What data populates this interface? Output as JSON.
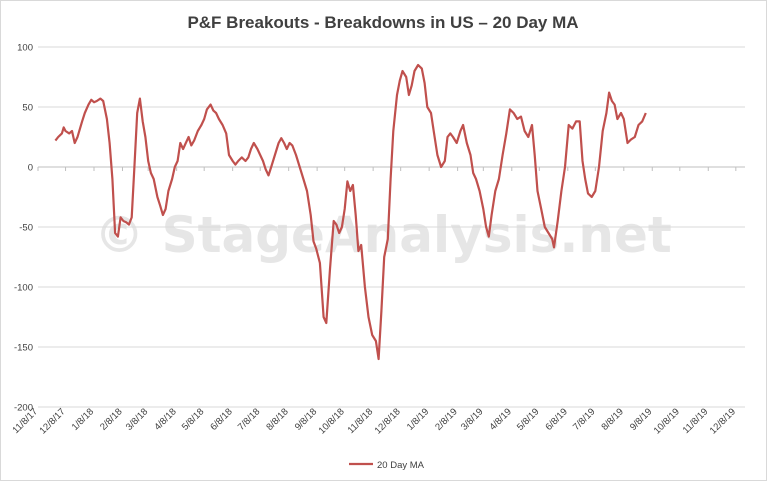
{
  "chart_data": {
    "type": "line",
    "title": "P&F Breakouts - Breakdowns in US – 20 Day MA",
    "watermark": "© StageAnalysis.net",
    "xlabel": "",
    "ylabel": "",
    "ylim": [
      -200,
      100
    ],
    "yticks": [
      100,
      50,
      0,
      -50,
      -100,
      -150,
      -200
    ],
    "xlim": [
      "2017-11-08",
      "2019-12-18"
    ],
    "xtick_labels": [
      {
        "date": "2017-11-08",
        "label": "11/8/17"
      },
      {
        "date": "2017-12-08",
        "label": "12/8/17"
      },
      {
        "date": "2018-01-08",
        "label": "1/8/18"
      },
      {
        "date": "2018-02-08",
        "label": "2/8/18"
      },
      {
        "date": "2018-03-08",
        "label": "3/8/18"
      },
      {
        "date": "2018-04-08",
        "label": "4/8/18"
      },
      {
        "date": "2018-05-08",
        "label": "5/8/18"
      },
      {
        "date": "2018-06-08",
        "label": "6/8/18"
      },
      {
        "date": "2018-07-08",
        "label": "7/8/18"
      },
      {
        "date": "2018-08-08",
        "label": "8/8/18"
      },
      {
        "date": "2018-09-08",
        "label": "9/8/18"
      },
      {
        "date": "2018-10-08",
        "label": "10/8/18"
      },
      {
        "date": "2018-11-08",
        "label": "11/8/18"
      },
      {
        "date": "2018-12-08",
        "label": "12/8/18"
      },
      {
        "date": "2019-01-08",
        "label": "1/8/19"
      },
      {
        "date": "2019-02-08",
        "label": "2/8/19"
      },
      {
        "date": "2019-03-08",
        "label": "3/8/19"
      },
      {
        "date": "2019-04-08",
        "label": "4/8/19"
      },
      {
        "date": "2019-05-08",
        "label": "5/8/19"
      },
      {
        "date": "2019-06-08",
        "label": "6/8/19"
      },
      {
        "date": "2019-07-08",
        "label": "7/8/19"
      },
      {
        "date": "2019-08-08",
        "label": "8/8/19"
      },
      {
        "date": "2019-09-08",
        "label": "9/8/19"
      },
      {
        "date": "2019-10-08",
        "label": "10/8/19"
      },
      {
        "date": "2019-11-08",
        "label": "11/8/19"
      },
      {
        "date": "2019-12-08",
        "label": "12/8/19"
      }
    ],
    "grid": true,
    "legend": "bottom-center",
    "series": [
      {
        "name": "20 Day MA",
        "color": "#c0504d",
        "points": [
          [
            "2017-11-27",
            22
          ],
          [
            "2017-11-30",
            25
          ],
          [
            "2017-12-04",
            28
          ],
          [
            "2017-12-06",
            33
          ],
          [
            "2017-12-08",
            30
          ],
          [
            "2017-12-12",
            28
          ],
          [
            "2017-12-15",
            30
          ],
          [
            "2017-12-18",
            20
          ],
          [
            "2017-12-21",
            25
          ],
          [
            "2017-12-26",
            38
          ],
          [
            "2017-12-29",
            45
          ],
          [
            "2018-01-02",
            52
          ],
          [
            "2018-01-05",
            56
          ],
          [
            "2018-01-08",
            54
          ],
          [
            "2018-01-11",
            55
          ],
          [
            "2018-01-15",
            57
          ],
          [
            "2018-01-18",
            55
          ],
          [
            "2018-01-22",
            40
          ],
          [
            "2018-01-25",
            20
          ],
          [
            "2018-01-28",
            -10
          ],
          [
            "2018-01-31",
            -55
          ],
          [
            "2018-02-03",
            -58
          ],
          [
            "2018-02-06",
            -42
          ],
          [
            "2018-02-09",
            -45
          ],
          [
            "2018-02-12",
            -46
          ],
          [
            "2018-02-15",
            -48
          ],
          [
            "2018-02-18",
            -42
          ],
          [
            "2018-02-21",
            0
          ],
          [
            "2018-02-24",
            45
          ],
          [
            "2018-02-27",
            57
          ],
          [
            "2018-03-02",
            38
          ],
          [
            "2018-03-05",
            25
          ],
          [
            "2018-03-08",
            5
          ],
          [
            "2018-03-11",
            -5
          ],
          [
            "2018-03-14",
            -10
          ],
          [
            "2018-03-18",
            -25
          ],
          [
            "2018-03-21",
            -32
          ],
          [
            "2018-03-24",
            -40
          ],
          [
            "2018-03-27",
            -35
          ],
          [
            "2018-03-30",
            -20
          ],
          [
            "2018-04-03",
            -10
          ],
          [
            "2018-04-06",
            0
          ],
          [
            "2018-04-09",
            5
          ],
          [
            "2018-04-12",
            20
          ],
          [
            "2018-04-15",
            15
          ],
          [
            "2018-04-18",
            20
          ],
          [
            "2018-04-21",
            25
          ],
          [
            "2018-04-24",
            18
          ],
          [
            "2018-04-27",
            22
          ],
          [
            "2018-05-01",
            30
          ],
          [
            "2018-05-05",
            35
          ],
          [
            "2018-05-08",
            40
          ],
          [
            "2018-05-11",
            48
          ],
          [
            "2018-05-15",
            52
          ],
          [
            "2018-05-18",
            47
          ],
          [
            "2018-05-21",
            45
          ],
          [
            "2018-05-24",
            40
          ],
          [
            "2018-05-28",
            35
          ],
          [
            "2018-06-01",
            28
          ],
          [
            "2018-06-04",
            10
          ],
          [
            "2018-06-08",
            5
          ],
          [
            "2018-06-11",
            2
          ],
          [
            "2018-06-14",
            5
          ],
          [
            "2018-06-18",
            8
          ],
          [
            "2018-06-22",
            5
          ],
          [
            "2018-06-25",
            8
          ],
          [
            "2018-06-28",
            15
          ],
          [
            "2018-07-01",
            20
          ],
          [
            "2018-07-05",
            15
          ],
          [
            "2018-07-08",
            10
          ],
          [
            "2018-07-11",
            5
          ],
          [
            "2018-07-14",
            -2
          ],
          [
            "2018-07-17",
            -7
          ],
          [
            "2018-07-20",
            0
          ],
          [
            "2018-07-24",
            10
          ],
          [
            "2018-07-28",
            20
          ],
          [
            "2018-07-31",
            24
          ],
          [
            "2018-08-03",
            20
          ],
          [
            "2018-08-06",
            15
          ],
          [
            "2018-08-09",
            20
          ],
          [
            "2018-08-12",
            18
          ],
          [
            "2018-08-16",
            10
          ],
          [
            "2018-08-20",
            0
          ],
          [
            "2018-08-24",
            -10
          ],
          [
            "2018-08-28",
            -20
          ],
          [
            "2018-09-01",
            -40
          ],
          [
            "2018-09-04",
            -62
          ],
          [
            "2018-09-07",
            -68
          ],
          [
            "2018-09-11",
            -80
          ],
          [
            "2018-09-15",
            -125
          ],
          [
            "2018-09-18",
            -130
          ],
          [
            "2018-09-22",
            -85
          ],
          [
            "2018-09-26",
            -45
          ],
          [
            "2018-09-29",
            -48
          ],
          [
            "2018-10-02",
            -55
          ],
          [
            "2018-10-05",
            -50
          ],
          [
            "2018-10-08",
            -35
          ],
          [
            "2018-10-11",
            -12
          ],
          [
            "2018-10-14",
            -20
          ],
          [
            "2018-10-17",
            -15
          ],
          [
            "2018-10-20",
            -40
          ],
          [
            "2018-10-23",
            -70
          ],
          [
            "2018-10-26",
            -65
          ],
          [
            "2018-10-30",
            -100
          ],
          [
            "2018-11-03",
            -125
          ],
          [
            "2018-11-07",
            -140
          ],
          [
            "2018-11-11",
            -145
          ],
          [
            "2018-11-14",
            -160
          ],
          [
            "2018-11-17",
            -120
          ],
          [
            "2018-11-20",
            -75
          ],
          [
            "2018-11-24",
            -60
          ],
          [
            "2018-11-27",
            -10
          ],
          [
            "2018-11-30",
            30
          ],
          [
            "2018-12-04",
            60
          ],
          [
            "2018-12-07",
            72
          ],
          [
            "2018-12-10",
            80
          ],
          [
            "2018-12-14",
            75
          ],
          [
            "2018-12-17",
            60
          ],
          [
            "2018-12-20",
            68
          ],
          [
            "2018-12-23",
            80
          ],
          [
            "2018-12-27",
            85
          ],
          [
            "2018-12-31",
            82
          ],
          [
            "2019-01-03",
            70
          ],
          [
            "2019-01-06",
            50
          ],
          [
            "2019-01-10",
            45
          ],
          [
            "2019-01-13",
            30
          ],
          [
            "2019-01-17",
            10
          ],
          [
            "2019-01-21",
            0
          ],
          [
            "2019-01-25",
            5
          ],
          [
            "2019-01-28",
            25
          ],
          [
            "2019-01-31",
            28
          ],
          [
            "2019-02-03",
            25
          ],
          [
            "2019-02-07",
            20
          ],
          [
            "2019-02-11",
            30
          ],
          [
            "2019-02-14",
            35
          ],
          [
            "2019-02-18",
            20
          ],
          [
            "2019-02-22",
            10
          ],
          [
            "2019-02-25",
            -5
          ],
          [
            "2019-02-28",
            -10
          ],
          [
            "2019-03-04",
            -20
          ],
          [
            "2019-03-08",
            -35
          ],
          [
            "2019-03-11",
            -50
          ],
          [
            "2019-03-14",
            -58
          ],
          [
            "2019-03-17",
            -40
          ],
          [
            "2019-03-21",
            -20
          ],
          [
            "2019-03-25",
            -10
          ],
          [
            "2019-03-29",
            10
          ],
          [
            "2019-04-02",
            28
          ],
          [
            "2019-04-06",
            48
          ],
          [
            "2019-04-10",
            45
          ],
          [
            "2019-04-14",
            40
          ],
          [
            "2019-04-18",
            42
          ],
          [
            "2019-04-22",
            30
          ],
          [
            "2019-04-26",
            25
          ],
          [
            "2019-04-30",
            35
          ],
          [
            "2019-05-03",
            10
          ],
          [
            "2019-05-06",
            -20
          ],
          [
            "2019-05-10",
            -35
          ],
          [
            "2019-05-14",
            -50
          ],
          [
            "2019-05-18",
            -55
          ],
          [
            "2019-05-22",
            -60
          ],
          [
            "2019-05-24",
            -67
          ],
          [
            "2019-05-28",
            -45
          ],
          [
            "2019-06-01",
            -20
          ],
          [
            "2019-06-05",
            0
          ],
          [
            "2019-06-09",
            35
          ],
          [
            "2019-06-13",
            32
          ],
          [
            "2019-06-17",
            38
          ],
          [
            "2019-06-21",
            38
          ],
          [
            "2019-06-24",
            5
          ],
          [
            "2019-06-27",
            -10
          ],
          [
            "2019-06-30",
            -22
          ],
          [
            "2019-07-04",
            -25
          ],
          [
            "2019-07-08",
            -20
          ],
          [
            "2019-07-12",
            0
          ],
          [
            "2019-07-16",
            30
          ],
          [
            "2019-07-20",
            45
          ],
          [
            "2019-07-23",
            62
          ],
          [
            "2019-07-26",
            55
          ],
          [
            "2019-07-29",
            52
          ],
          [
            "2019-08-01",
            40
          ],
          [
            "2019-08-05",
            45
          ],
          [
            "2019-08-08",
            40
          ],
          [
            "2019-08-12",
            20
          ],
          [
            "2019-08-16",
            23
          ],
          [
            "2019-08-20",
            25
          ],
          [
            "2019-08-24",
            35
          ],
          [
            "2019-08-28",
            38
          ],
          [
            "2019-09-01",
            45
          ]
        ]
      }
    ]
  }
}
